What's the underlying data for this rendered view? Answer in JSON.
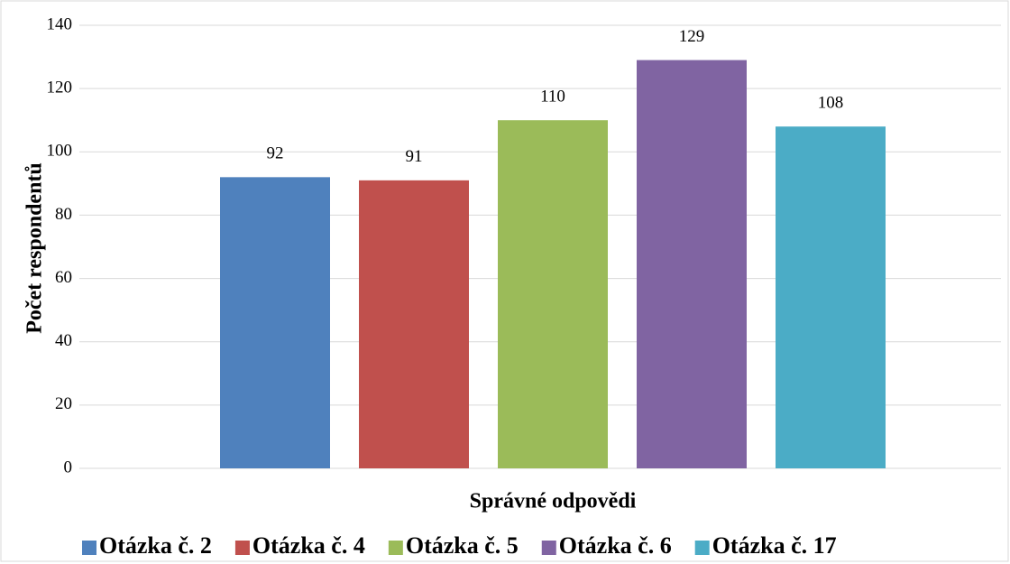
{
  "chart_data": {
    "type": "bar",
    "y_label": "Počet respondentů",
    "categories": [
      "Správné odpovědi"
    ],
    "series": [
      {
        "name": "Otázka č. 2",
        "color": "#4f81bd",
        "values": [
          92
        ]
      },
      {
        "name": "Otázka č. 4",
        "color": "#c0504d",
        "values": [
          91
        ]
      },
      {
        "name": "Otázka č. 5",
        "color": "#9bbb59",
        "values": [
          110
        ]
      },
      {
        "name": "Otázka č. 6",
        "color": "#8064a2",
        "values": [
          129
        ]
      },
      {
        "name": "Otázka č. 17",
        "color": "#4bacc6",
        "values": [
          108
        ]
      }
    ],
    "ylim": [
      0,
      140
    ],
    "yticks": [
      0,
      20,
      40,
      60,
      80,
      100,
      120,
      140
    ],
    "grid": true,
    "legend": "bottom"
  }
}
